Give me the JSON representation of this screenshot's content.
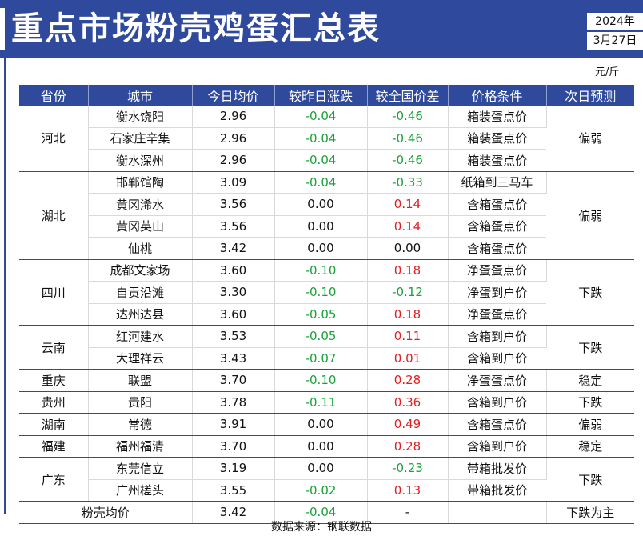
{
  "header": {
    "title": "重点市场粉壳鸡蛋汇总表",
    "year": "2024年",
    "date": "3月27日"
  },
  "unit": "元/斤",
  "columns": [
    "省份",
    "城市",
    "今日均价",
    "较昨日涨跌",
    "较全国价差",
    "价格条件",
    "次日预测"
  ],
  "groups": [
    {
      "province": "河北",
      "rows": [
        {
          "city": "衡水饶阳",
          "price": "2.96",
          "change": "-0.04",
          "diff": "-0.46",
          "condition": "箱装蛋点价"
        },
        {
          "city": "石家庄辛集",
          "price": "2.96",
          "change": "-0.04",
          "diff": "-0.46",
          "condition": "箱装蛋点价"
        },
        {
          "city": "衡水深州",
          "price": "2.96",
          "change": "-0.04",
          "diff": "-0.46",
          "condition": "箱装蛋点价"
        }
      ],
      "forecast": "偏弱",
      "forecast_span": 3
    },
    {
      "province": "湖北",
      "rows": [
        {
          "city": "邯郸馆陶",
          "price": "3.09",
          "change": "-0.04",
          "diff": "-0.33",
          "condition": "纸箱到三马车"
        },
        {
          "city": "黄冈浠水",
          "price": "3.56",
          "change": "0.00",
          "diff": "0.14",
          "condition": "含箱蛋点价"
        },
        {
          "city": "黄冈英山",
          "price": "3.56",
          "change": "0.00",
          "diff": "0.14",
          "condition": "含箱蛋点价"
        },
        {
          "city": "仙桃",
          "price": "3.42",
          "change": "0.00",
          "diff": "0.00",
          "condition": "含箱蛋点价"
        }
      ],
      "forecast": "偏弱",
      "forecast_span": 4
    },
    {
      "province": "四川",
      "rows": [
        {
          "city": "成都文家场",
          "price": "3.60",
          "change": "-0.10",
          "diff": "0.18",
          "condition": "净蛋蛋点价"
        },
        {
          "city": "自贡沿滩",
          "price": "3.30",
          "change": "-0.10",
          "diff": "-0.12",
          "condition": "净蛋到户价"
        },
        {
          "city": "达州达县",
          "price": "3.60",
          "change": "-0.05",
          "diff": "0.18",
          "condition": "净蛋蛋点价"
        }
      ],
      "forecast": "下跌",
      "forecast_span": 3
    },
    {
      "province": "云南",
      "rows": [
        {
          "city": "红河建水",
          "price": "3.53",
          "change": "-0.05",
          "diff": "0.11",
          "condition": "含箱到户价"
        },
        {
          "city": "大理祥云",
          "price": "3.43",
          "change": "-0.07",
          "diff": "0.01",
          "condition": "含箱到户价"
        }
      ],
      "forecast": "下跌",
      "forecast_span": 2
    },
    {
      "province": "重庆",
      "rows": [
        {
          "city": "联盟",
          "price": "3.70",
          "change": "-0.10",
          "diff": "0.28",
          "condition": "净蛋蛋点价"
        }
      ],
      "forecast": "稳定",
      "forecast_span": 1
    },
    {
      "province": "贵州",
      "rows": [
        {
          "city": "贵阳",
          "price": "3.78",
          "change": "-0.11",
          "diff": "0.36",
          "condition": "含箱到户价"
        }
      ],
      "forecast": "下跌",
      "forecast_span": 1
    },
    {
      "province": "湖南",
      "rows": [
        {
          "city": "常德",
          "price": "3.91",
          "change": "0.00",
          "diff": "0.49",
          "condition": "含箱蛋点价"
        }
      ],
      "forecast": "偏弱",
      "forecast_span": 1
    },
    {
      "province": "福建",
      "rows": [
        {
          "city": "福州福清",
          "price": "3.70",
          "change": "0.00",
          "diff": "0.28",
          "condition": "含箱到户价"
        }
      ],
      "forecast": "稳定",
      "forecast_span": 1
    },
    {
      "province": "广东",
      "rows": [
        {
          "city": "东莞信立",
          "price": "3.19",
          "change": "0.00",
          "diff": "-0.23",
          "condition": "带箱批发价"
        },
        {
          "city": "广州槎头",
          "price": "3.55",
          "change": "-0.02",
          "diff": "0.13",
          "condition": "带箱批发价"
        }
      ],
      "forecast": "下跌",
      "forecast_span": 2
    }
  ],
  "average": {
    "label": "粉壳均价",
    "price": "3.42",
    "change": "-0.04",
    "diff": "-",
    "condition": "",
    "forecast": "下跌为主"
  },
  "source": "数据来源：钢联数据"
}
